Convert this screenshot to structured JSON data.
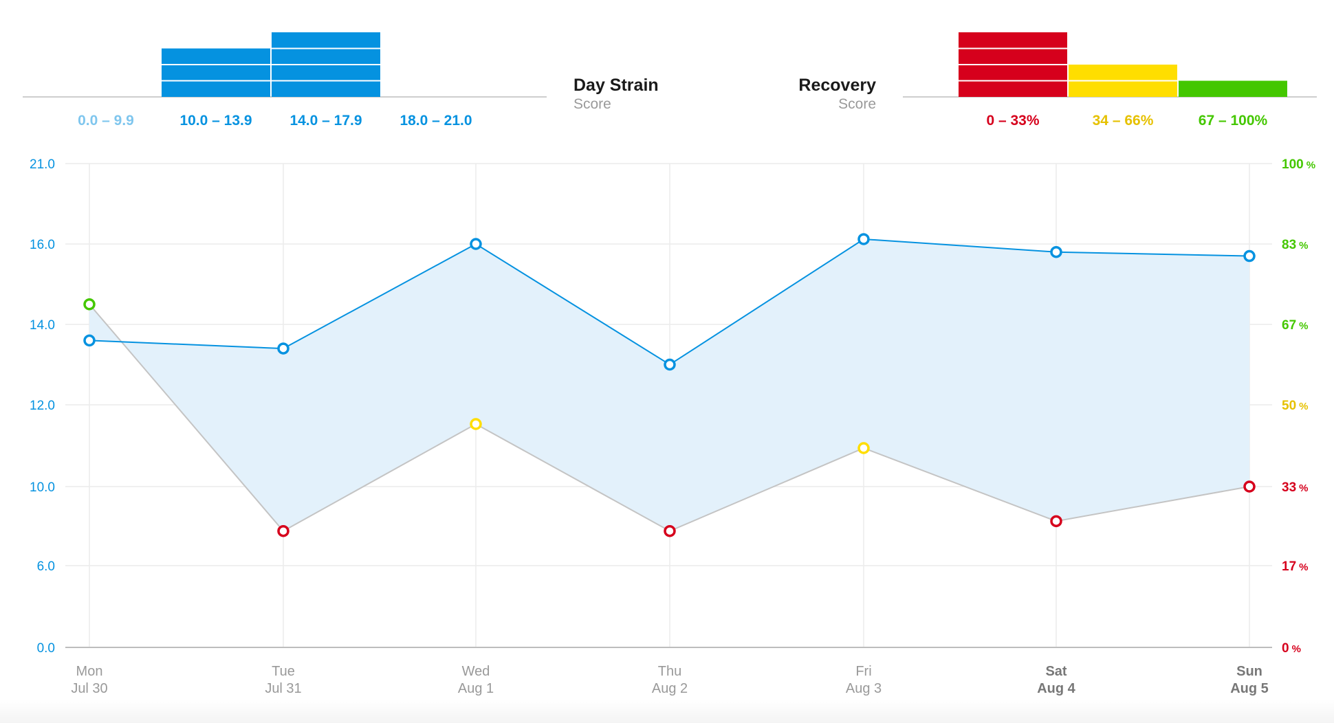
{
  "colors": {
    "strain_blue": "#0592e0",
    "strain_light": "#7fc6ee",
    "strain_fill": "#e3f1fb",
    "recovery_red": "#d6001c",
    "recovery_yellow": "#ffde00",
    "recovery_green": "#44c700",
    "recovery_yellow_text": "#e6c100",
    "recovery_line": "#c4c4c4",
    "axis_gray": "#999999",
    "grid_gray": "#ececec"
  },
  "strain_legend": {
    "title": "Day Strain",
    "subtitle": "Score",
    "bins": [
      {
        "label": "0.0 – 9.9",
        "count": 0,
        "tone": "light"
      },
      {
        "label": "10.0 – 13.9",
        "count": 3,
        "tone": "blue"
      },
      {
        "label": "14.0 – 17.9",
        "count": 4,
        "tone": "blue"
      },
      {
        "label": "18.0 – 21.0",
        "count": 0,
        "tone": "blue"
      }
    ]
  },
  "recovery_legend": {
    "title": "Recovery",
    "subtitle": "Score",
    "bins": [
      {
        "label": "0 – 33%",
        "count": 4,
        "tone": "red"
      },
      {
        "label": "34 – 66%",
        "count": 2,
        "tone": "yellow"
      },
      {
        "label": "67 – 100%",
        "count": 1,
        "tone": "green"
      }
    ]
  },
  "chart_data": {
    "type": "line",
    "categories": [
      {
        "day": "Mon",
        "date": "Jul 30",
        "bold": false
      },
      {
        "day": "Tue",
        "date": "Jul 31",
        "bold": false
      },
      {
        "day": "Wed",
        "date": "Aug 1",
        "bold": false
      },
      {
        "day": "Thu",
        "date": "Aug 2",
        "bold": false
      },
      {
        "day": "Fri",
        "date": "Aug 3",
        "bold": false
      },
      {
        "day": "Sat",
        "date": "Aug 4",
        "bold": true
      },
      {
        "day": "Sun",
        "date": "Aug 5",
        "bold": true
      }
    ],
    "left_axis": {
      "ticks": [
        "21.0",
        "16.0",
        "14.0",
        "12.0",
        "10.0",
        "6.0",
        "0.0"
      ]
    },
    "right_axis": {
      "ticks": [
        {
          "label": "100",
          "unit": "%",
          "tone": "green"
        },
        {
          "label": "83",
          "unit": "%",
          "tone": "green"
        },
        {
          "label": "67",
          "unit": "%",
          "tone": "green"
        },
        {
          "label": "50",
          "unit": "%",
          "tone": "yellow"
        },
        {
          "label": "33",
          "unit": "%",
          "tone": "red"
        },
        {
          "label": "17",
          "unit": "%",
          "tone": "red"
        },
        {
          "label": "0",
          "unit": "%",
          "tone": "red"
        }
      ]
    },
    "series": [
      {
        "name": "Day Strain",
        "axis": "left",
        "values": [
          13.6,
          13.4,
          16.0,
          13.0,
          16.3,
          15.8,
          15.7
        ]
      },
      {
        "name": "Recovery",
        "axis": "right",
        "values": [
          71,
          24,
          46,
          24,
          41,
          26,
          33
        ],
        "tones": [
          "green",
          "red",
          "yellow",
          "red",
          "yellow",
          "red",
          "red"
        ]
      }
    ]
  }
}
